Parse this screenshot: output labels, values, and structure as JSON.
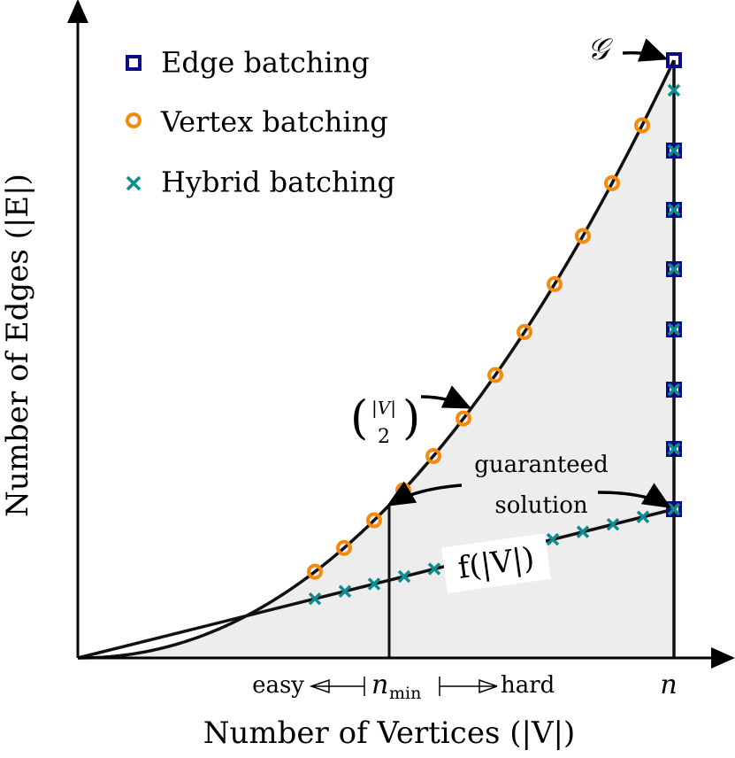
{
  "legend": {
    "items": [
      {
        "label": "Edge batching"
      },
      {
        "label": "Vertex batching"
      },
      {
        "label": "Hybrid batching"
      }
    ]
  },
  "axes": {
    "x_label": "Number of Vertices (|V|)",
    "y_label": "Number of Edges (|E|)"
  },
  "annotations": {
    "graph": "𝒢",
    "binom_top": "|V|",
    "binom_bottom": "2",
    "guaranteed_line1": "guaranteed",
    "guaranteed_line2": "solution",
    "f_label": "f(|V|)"
  },
  "x_marks": {
    "easy": "easy",
    "n_min_base": "n",
    "n_min_sub": "min",
    "hard": "hard",
    "n": "n"
  }
}
